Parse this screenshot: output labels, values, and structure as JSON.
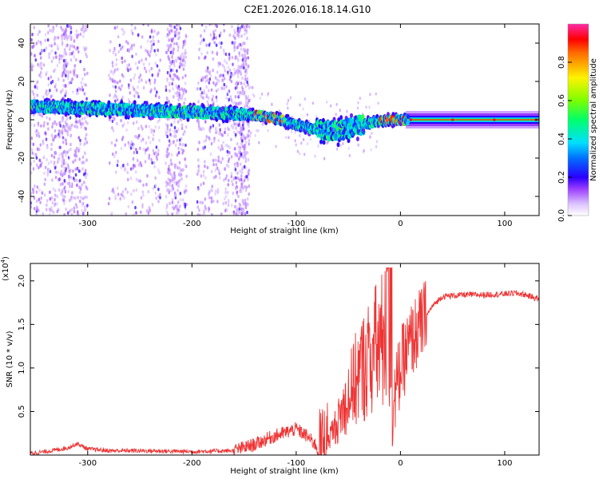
{
  "title": "C2E1.2026.016.18.14.G10",
  "chart_data": [
    {
      "type": "heatmap",
      "name": "spectrogram",
      "xlabel": "Height of straight line (km)",
      "ylabel": "Frequency (Hz)",
      "xlim": [
        -355,
        133
      ],
      "ylim": [
        -50,
        50
      ],
      "xticks": [
        -300,
        -200,
        -100,
        0,
        100
      ],
      "yticks": [
        -40,
        -20,
        0,
        20,
        40
      ],
      "ridge": {
        "x": [
          -355,
          -300,
          -250,
          -200,
          -150,
          -120,
          -100,
          -80,
          -60,
          -40,
          -20,
          0,
          133
        ],
        "y": [
          7,
          6,
          5,
          4,
          3,
          1,
          -3,
          -5,
          -6,
          -3,
          -0.5,
          0,
          0
        ]
      },
      "colorbar": {
        "label": "Normalized spectral amplitude",
        "range": [
          0,
          1
        ],
        "ticks": [
          0.0,
          0.2,
          0.4,
          0.6,
          0.8
        ],
        "tick_labels": [
          "0.0",
          "0.2",
          "0.4",
          "0.6",
          "0.8"
        ]
      }
    },
    {
      "type": "line",
      "name": "snr",
      "xlabel": "Height of straight line (km)",
      "ylabel": "SNR (10 * v/v)",
      "scale_label": "(x10",
      "scale_exp": "4",
      "scale_close": ")",
      "xlim": [
        -355,
        133
      ],
      "ylim": [
        0,
        2.2
      ],
      "xticks": [
        -300,
        -200,
        -100,
        0,
        100
      ],
      "yticks": [
        0.5,
        1.0,
        1.5,
        2.0
      ],
      "ytick_labels": [
        "0.5",
        "1.0",
        "1.5",
        "2.0"
      ],
      "color": "#ee3333",
      "series": [
        {
          "name": "SNR",
          "x": [
            -355,
            -340,
            -320,
            -310,
            -300,
            -280,
            -250,
            -200,
            -160,
            -140,
            -125,
            -110,
            -100,
            -90,
            -80,
            -70,
            -60,
            -50,
            -40,
            -30,
            -20,
            -12,
            -8,
            0,
            10,
            20,
            30,
            40,
            60,
            80,
            100,
            110,
            120,
            133
          ],
          "y": [
            0.02,
            0.04,
            0.08,
            0.13,
            0.07,
            0.05,
            0.05,
            0.04,
            0.05,
            0.12,
            0.2,
            0.26,
            0.3,
            0.22,
            0.1,
            0.2,
            0.45,
            0.8,
            1.1,
            1.3,
            1.5,
            1.6,
            0.5,
            1.0,
            1.3,
            1.5,
            1.7,
            1.82,
            1.84,
            1.84,
            1.85,
            1.86,
            1.84,
            1.79
          ]
        }
      ]
    }
  ]
}
